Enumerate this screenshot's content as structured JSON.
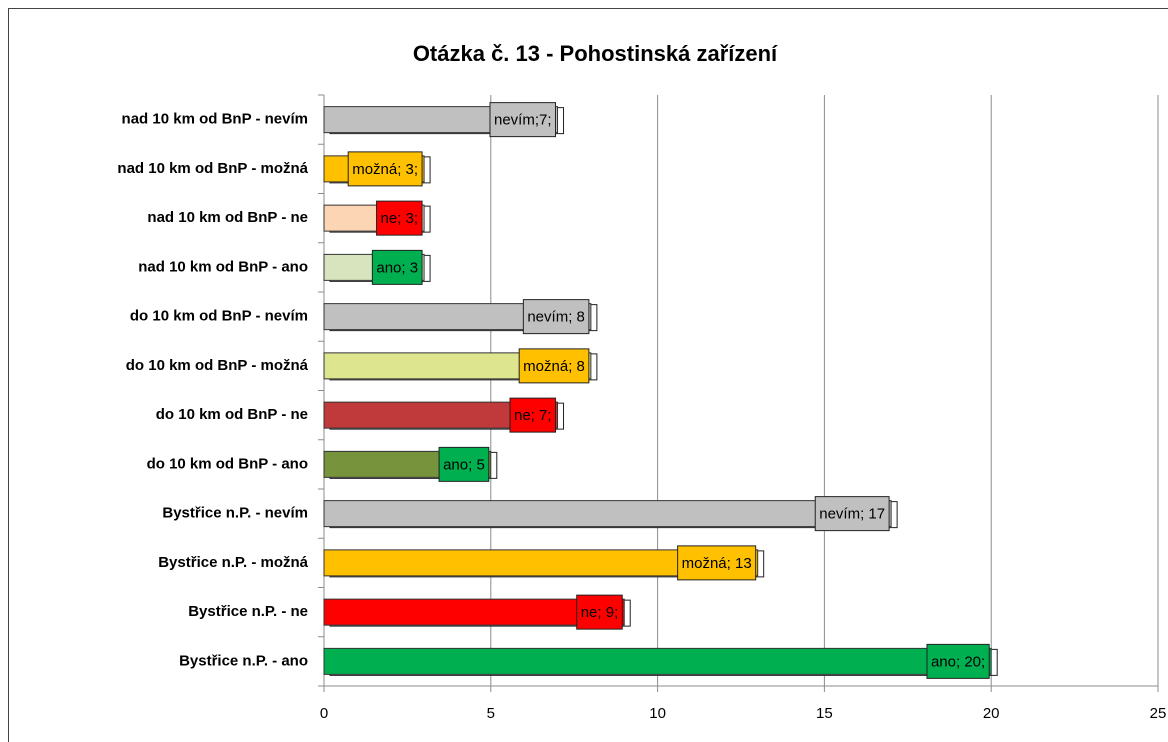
{
  "chart_data": {
    "type": "hbar",
    "title": "Otázka č. 13 - Pohostinská zařízení",
    "categories": [
      "nad 10 km od BnP - nevím",
      "nad 10 km od BnP - možná",
      "nad 10 km od BnP - ne",
      "nad 10 km od BnP - ano",
      "do 10 km od BnP - nevím",
      "do 10 km od BnP - možná",
      "do 10 km od BnP - ne",
      "do 10 km od BnP - ano",
      "Bystřice n.P. - nevím",
      "Bystřice n.P. - možná",
      "Bystřice n.P. - ne",
      "Bystřice n.P. - ano"
    ],
    "values": [
      7,
      3,
      3,
      3,
      8,
      8,
      7,
      5,
      17,
      13,
      9,
      20
    ],
    "value_labels": [
      "nevím;7;",
      "možná; 3;",
      "ne; 3;",
      "ano; 3",
      "nevím; 8",
      "možná; 8",
      "ne; 7;",
      "ano; 5",
      "nevím; 17",
      "možná; 13",
      "ne; 9;",
      "ano; 20;"
    ],
    "colors": [
      "#c0c0c0",
      "#ffc000",
      "#fcd5b5",
      "#d7e4bd",
      "#c0c0c0",
      "#dde58e",
      "#c0393b",
      "#77933c",
      "#c0c0c0",
      "#ffc000",
      "#ff0000",
      "#00b050"
    ],
    "label_colors": [
      "#c0c0c0",
      "#ffc000",
      "#ff0000",
      "#00b050",
      "#c0c0c0",
      "#ffc000",
      "#ff0000",
      "#00b050",
      "#c0c0c0",
      "#ffc000",
      "#ff0000",
      "#00b050"
    ],
    "xlim": [
      0,
      25
    ],
    "xticks": [
      0,
      5,
      10,
      15,
      20,
      25
    ],
    "grid": true
  }
}
